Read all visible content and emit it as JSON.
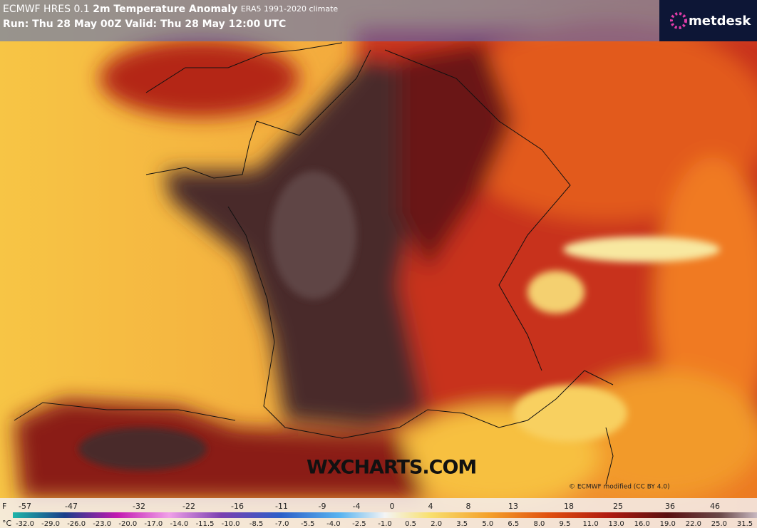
{
  "header": {
    "model": "ECMWF HRES 0.1",
    "parameter": "2m Temperature Anomaly",
    "climate": "ERA5 1991-2020 climate",
    "run": "Run: Thu 28 May 00Z Valid: Thu 28 May 12:00 UTC"
  },
  "logo": "metdesk",
  "watermark": "WXCHARTS.COM",
  "copyright": "© ECMWF modified (CC BY 4.0)",
  "legend": {
    "f_unit": "F",
    "f_labels": [
      "-57",
      "-47",
      "-32",
      "-22",
      "-16",
      "-11",
      "-9",
      "-4",
      "0",
      "4",
      "8",
      "13",
      "18",
      "25",
      "36",
      "46"
    ],
    "c_unit": "°C",
    "c_labels": [
      "-32.0",
      "-29.0",
      "-26.0",
      "-23.0",
      "-20.0",
      "-17.0",
      "-14.0",
      "-11.5",
      "-10.0",
      "-8.5",
      "-7.0",
      "-5.5",
      "-4.0",
      "-2.5",
      "-1.0",
      "0.5",
      "2.0",
      "3.5",
      "5.0",
      "6.5",
      "8.0",
      "9.5",
      "11.0",
      "13.0",
      "16.0",
      "19.0",
      "22.0",
      "25.0",
      "31.5"
    ]
  }
}
